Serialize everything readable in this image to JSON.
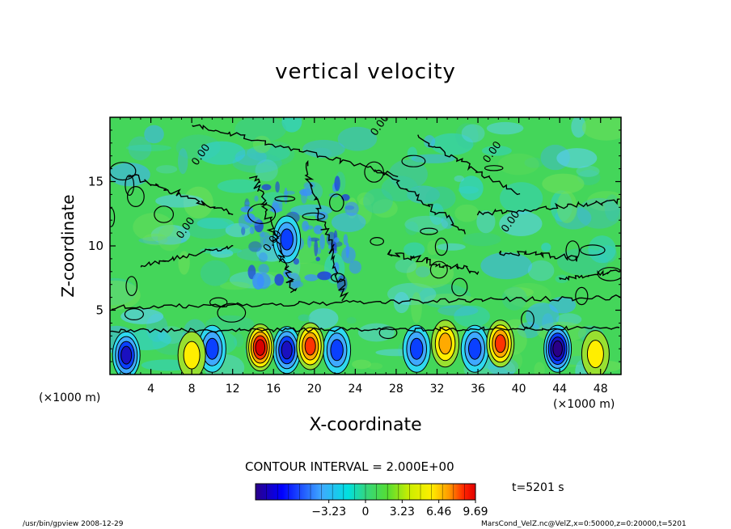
{
  "chart_data": {
    "type": "heatmap",
    "title": "vertical velocity",
    "xlabel": "X-coordinate",
    "ylabel": "Z-coordinate",
    "x_unit_label": "(×1000 m)",
    "xlim": [
      0,
      50
    ],
    "ylim": [
      0,
      20
    ],
    "x_ticks": [
      4,
      8,
      12,
      16,
      20,
      24,
      28,
      32,
      36,
      40,
      44,
      48
    ],
    "y_ticks": [
      5,
      10,
      15
    ],
    "contour_label": "0.00",
    "contour_interval_text": "CONTOUR INTERVAL = 2.000E+00",
    "colorbar": {
      "range": [
        -9.69,
        9.69
      ],
      "tick_values": [
        -3.23,
        0,
        3.23,
        6.46,
        9.69
      ],
      "tick_labels": [
        "−3.23",
        "0",
        "3.23",
        "6.46",
        "9.69"
      ],
      "colors": [
        "#2a0088",
        "#0000ff",
        "#3fa9ff",
        "#00e0e0",
        "#33d680",
        "#55dd33",
        "#ccee00",
        "#ffee00",
        "#ff9900",
        "#ff2200",
        "#e00000"
      ]
    },
    "updraft_cells": [
      {
        "x": 14.7,
        "z": 2.1,
        "w": 9.0
      },
      {
        "x": 19.6,
        "z": 2.2,
        "w": 8.5
      },
      {
        "x": 32.8,
        "z": 2.4,
        "w": 6.8
      },
      {
        "x": 38.2,
        "z": 2.4,
        "w": 7.8
      },
      {
        "x": 8.0,
        "z": 1.5,
        "w": 4.5
      },
      {
        "x": 47.5,
        "z": 1.6,
        "w": 4.0
      }
    ],
    "downdraft_cells": [
      {
        "x": 1.6,
        "z": 1.5,
        "w": -7.0
      },
      {
        "x": 10.0,
        "z": 2.0,
        "w": -5.5
      },
      {
        "x": 17.3,
        "z": 1.9,
        "w": -7.5
      },
      {
        "x": 22.2,
        "z": 1.9,
        "w": -6.5
      },
      {
        "x": 30.0,
        "z": 2.0,
        "w": -5.0
      },
      {
        "x": 35.7,
        "z": 2.0,
        "w": -6.5
      },
      {
        "x": 43.8,
        "z": 2.0,
        "w": -9.0
      },
      {
        "x": 17.3,
        "z": 10.5,
        "w": -5.0
      }
    ]
  },
  "time_label": "t=5201 s",
  "footer_left": "/usr/bin/gpview   2008-12-29",
  "footer_right": "MarsCond_VelZ.nc@VelZ,x=0:50000,z=0:20000,t=5201"
}
